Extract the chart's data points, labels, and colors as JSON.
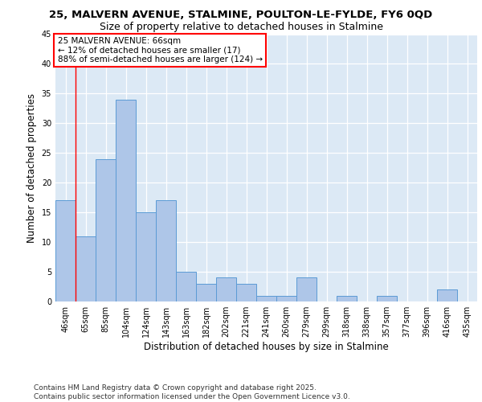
{
  "title_line1": "25, MALVERN AVENUE, STALMINE, POULTON-LE-FYLDE, FY6 0QD",
  "title_line2": "Size of property relative to detached houses in Stalmine",
  "xlabel": "Distribution of detached houses by size in Stalmine",
  "ylabel": "Number of detached properties",
  "categories": [
    "46sqm",
    "65sqm",
    "85sqm",
    "104sqm",
    "124sqm",
    "143sqm",
    "163sqm",
    "182sqm",
    "202sqm",
    "221sqm",
    "241sqm",
    "260sqm",
    "279sqm",
    "299sqm",
    "318sqm",
    "338sqm",
    "357sqm",
    "377sqm",
    "396sqm",
    "416sqm",
    "435sqm"
  ],
  "values": [
    17,
    11,
    24,
    34,
    15,
    17,
    5,
    3,
    4,
    3,
    1,
    1,
    4,
    0,
    1,
    0,
    1,
    0,
    0,
    2,
    0
  ],
  "bar_color": "#aec6e8",
  "bar_edge_color": "#5b9bd5",
  "background_color": "#dce9f5",
  "ylim": [
    0,
    45
  ],
  "yticks": [
    0,
    5,
    10,
    15,
    20,
    25,
    30,
    35,
    40,
    45
  ],
  "annotation_box_text": "25 MALVERN AVENUE: 66sqm\n← 12% of detached houses are smaller (17)\n88% of semi-detached houses are larger (124) →",
  "vline_x_index": 0.5,
  "footer_text": "Contains HM Land Registry data © Crown copyright and database right 2025.\nContains public sector information licensed under the Open Government Licence v3.0.",
  "title_fontsize": 9.5,
  "subtitle_fontsize": 9,
  "axis_label_fontsize": 8.5,
  "tick_fontsize": 7,
  "annotation_fontsize": 7.5,
  "footer_fontsize": 6.5
}
